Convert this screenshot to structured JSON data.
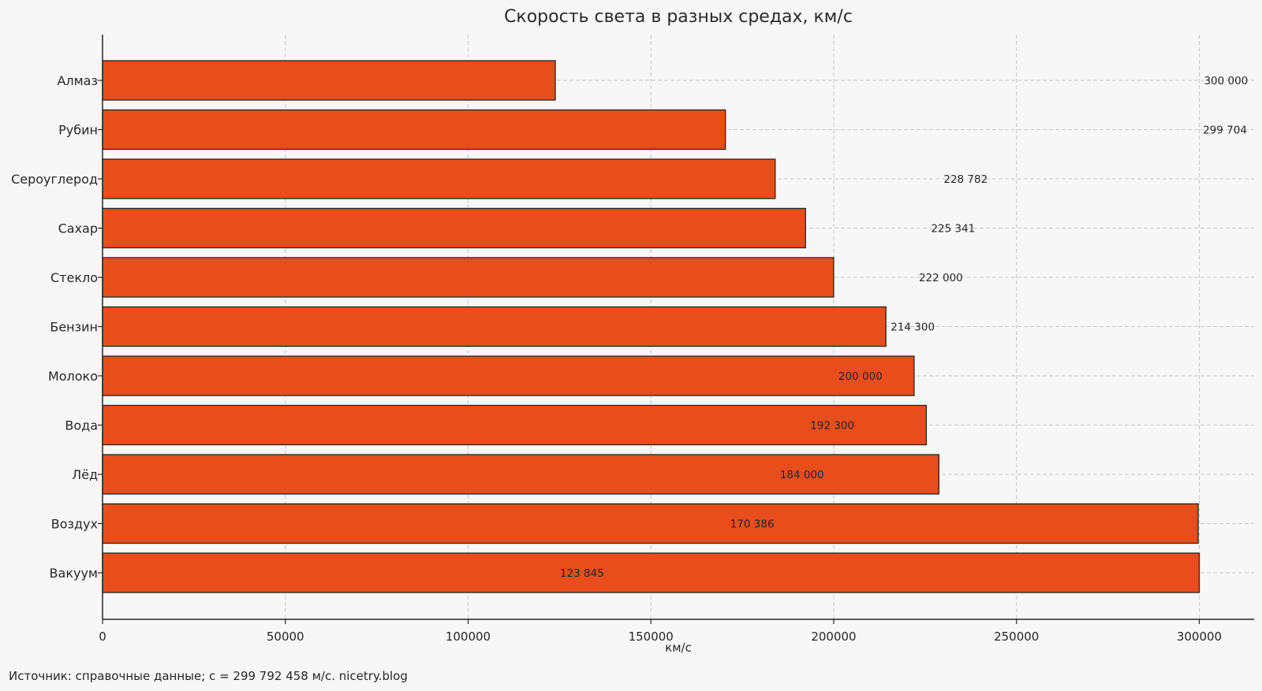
{
  "colors": {
    "bar_fill": "#e84d1c",
    "bar_edge": "#262626",
    "background": "#f7f7f7",
    "grid": "#c9c9c9"
  },
  "chart_data": {
    "type": "bar",
    "orientation": "horizontal",
    "title": "Скорость света в разных средах, км/с",
    "xlabel": "км/с",
    "ylabel": "",
    "xlim": [
      0,
      315000
    ],
    "xticks": [
      0,
      50000,
      100000,
      150000,
      200000,
      250000,
      300000
    ],
    "xtick_labels": [
      "0",
      "50000",
      "100000",
      "150000",
      "200000",
      "250000",
      "300000"
    ],
    "grid": true,
    "categories": [
      "Алмаз",
      "Рубин",
      "Сероуглерод",
      "Сахар",
      "Стекло",
      "Бензин",
      "Молоко",
      "Вода",
      "Лёд",
      "Воздух",
      "Вакуум"
    ],
    "values": [
      123845,
      170386,
      184000,
      192300,
      200000,
      214300,
      222000,
      225341,
      228782,
      299704,
      300000
    ],
    "data_labels": [
      "300 000",
      "299 704",
      "228 782",
      "225 341",
      "222 000",
      "214 300",
      "200 000",
      "192 300",
      "184 000",
      "170 386",
      "123 845"
    ],
    "data_label_positions": [
      300000,
      299704,
      228782,
      225341,
      222000,
      214300,
      200000,
      192300,
      184000,
      170386,
      123845
    ]
  },
  "source_note": "Источник: справочные данные; c = 299 792 458 м/с. nicetry.blog"
}
